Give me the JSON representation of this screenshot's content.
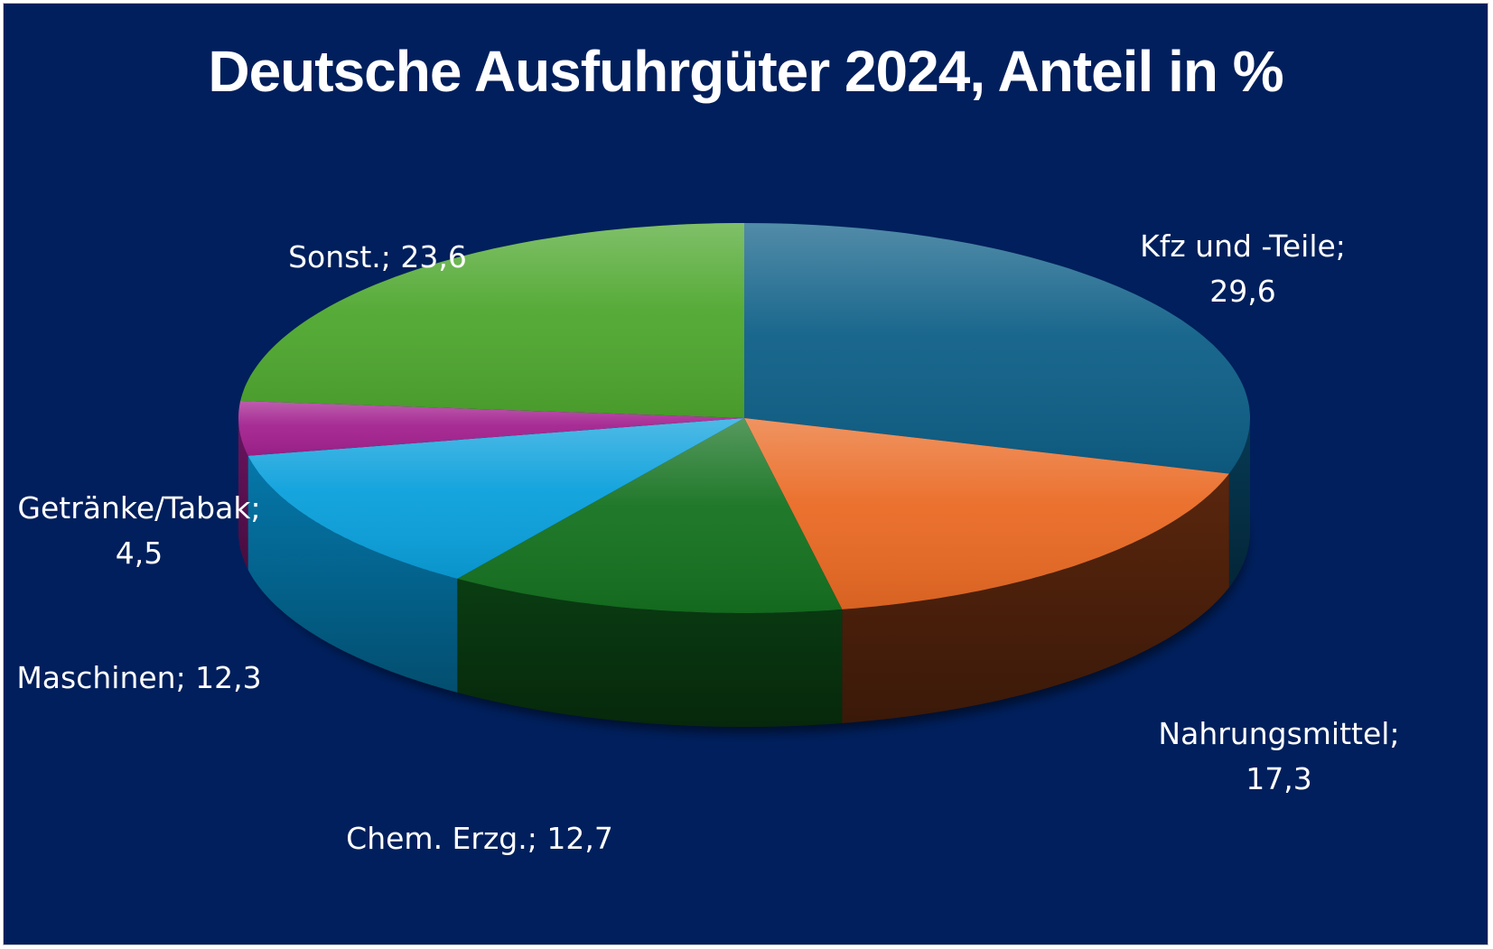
{
  "chart_data": {
    "type": "pie",
    "title": "Deutsche Ausfuhrgüter 2024, Anteil in %",
    "three_d": true,
    "slices": [
      {
        "name": "Kfz und -Teile",
        "value": 29.6,
        "label_lines": [
          "Kfz und -Teile;",
          "29,6"
        ],
        "color": "#0e5f87",
        "side_color": "#063a55"
      },
      {
        "name": "Nahrungsmittel",
        "value": 17.3,
        "label_lines": [
          "Nahrungsmittel;",
          "17,3"
        ],
        "color": "#ea6a24",
        "side_color": "#5a260d"
      },
      {
        "name": "Chem. Erzg.",
        "value": 12.7,
        "label_lines": [
          "Chem. Erzg.; 12,7"
        ],
        "color": "#157220",
        "side_color": "#0a3d12"
      },
      {
        "name": "Maschinen",
        "value": 12.3,
        "label_lines": [
          "Maschinen; 12,3"
        ],
        "color": "#0aa0dc",
        "side_color": "#0478ab"
      },
      {
        "name": "Getränke/Tabak",
        "value": 4.5,
        "label_lines": [
          "Getränke/Tabak;",
          "4,5"
        ],
        "color": "#a3218f",
        "side_color": "#6b1460"
      },
      {
        "name": "Sonst.",
        "value": 23.6,
        "label_lines": [
          "Sonst.; 23,6"
        ],
        "color": "#4ea72e",
        "side_color": "#2f6d1b"
      }
    ],
    "label_position": "outside",
    "legend": "none"
  }
}
